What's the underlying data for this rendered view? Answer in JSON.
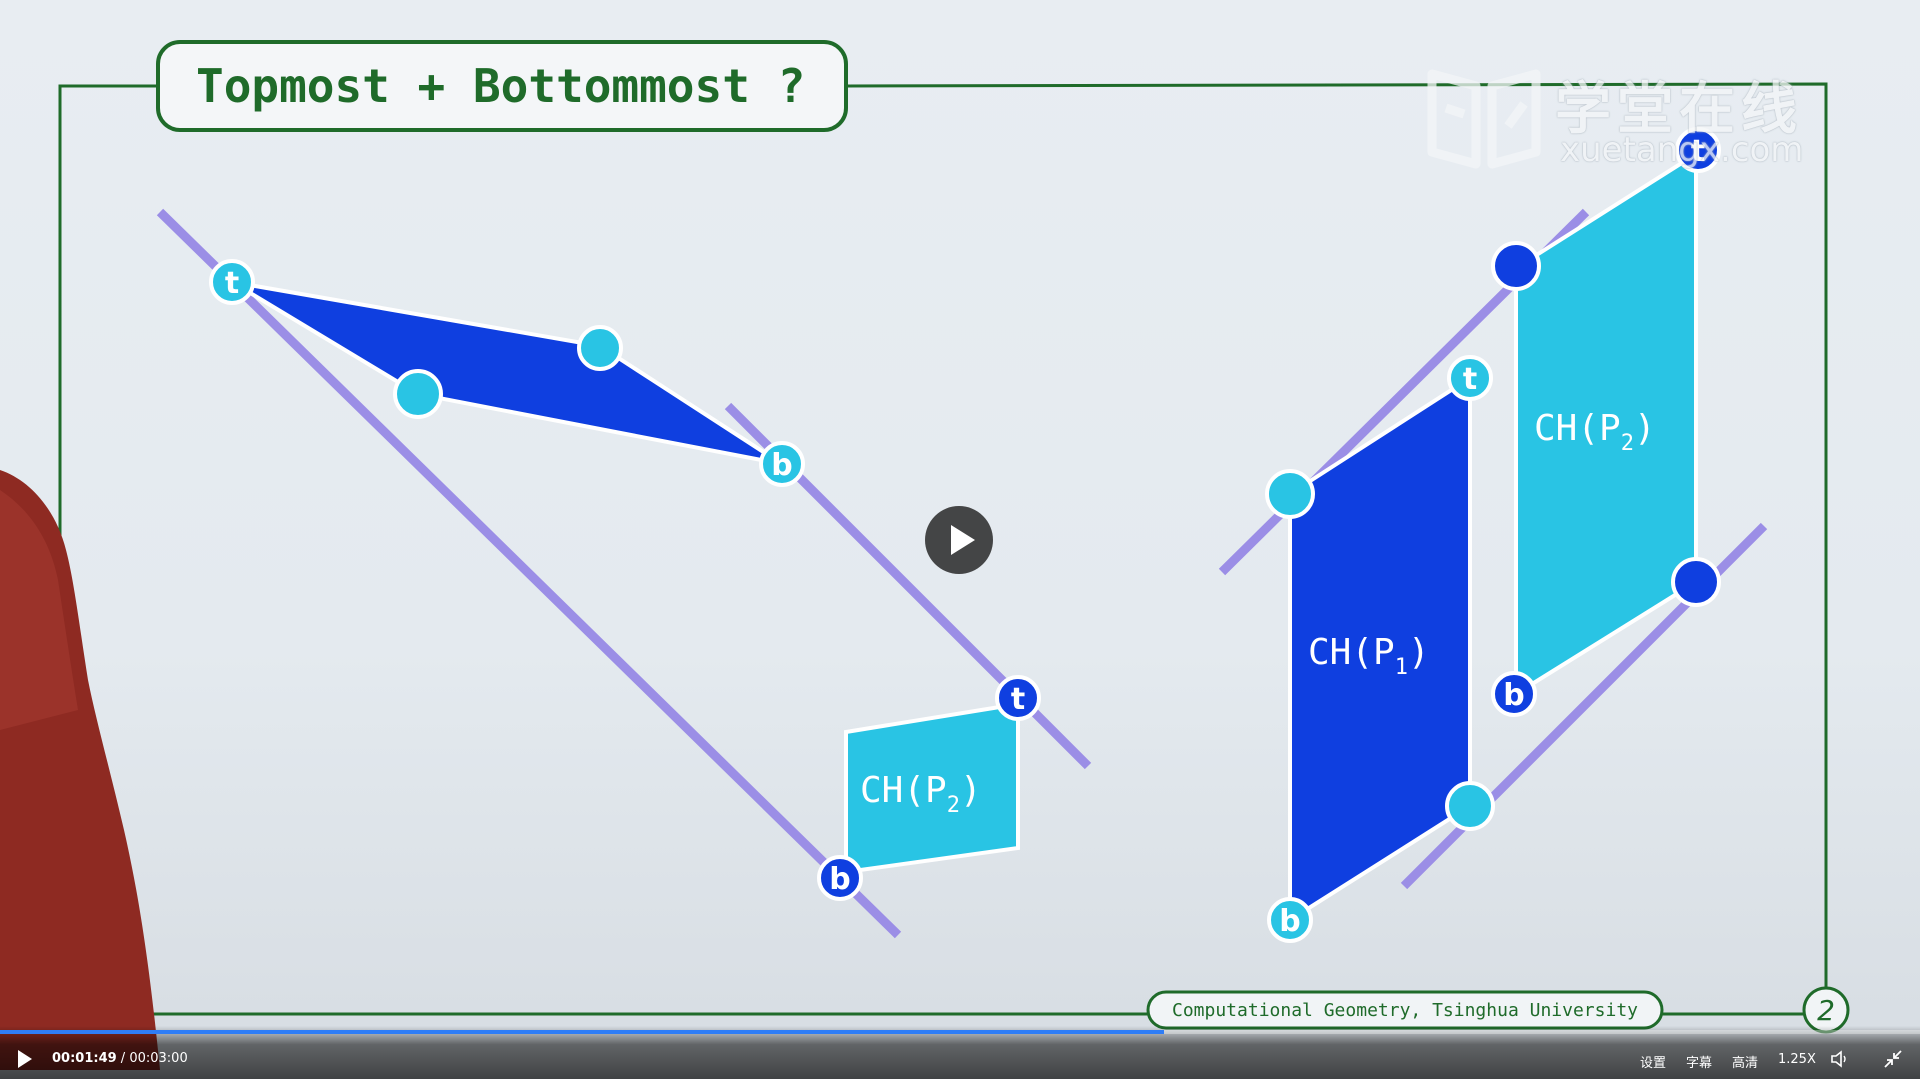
{
  "slide": {
    "title": "Topmost + Bottommost ?",
    "footer": "Computational Geometry, Tsinghua University",
    "page_number": "2",
    "labels": {
      "t": "t",
      "b": "b",
      "ch": "CH(P",
      "close": ")",
      "sub1": "1",
      "sub2": "2"
    }
  },
  "watermark": {
    "chinese": "学堂在线",
    "domain": "xuetangx.com"
  },
  "player": {
    "current_time": "00:01:49",
    "separator": " / ",
    "total_time": "00:03:00",
    "progress": 0.606,
    "controls": {
      "settings": "设置",
      "subtitles": "字幕",
      "quality": "高清",
      "speed": "1.25X"
    }
  },
  "colors": {
    "dark_blue": "#0f3fe0",
    "cyan": "#29c4e4",
    "green_frame": "#1f6b2a",
    "purple_line": "#9b8ee6",
    "progress": "#2f7df6"
  }
}
